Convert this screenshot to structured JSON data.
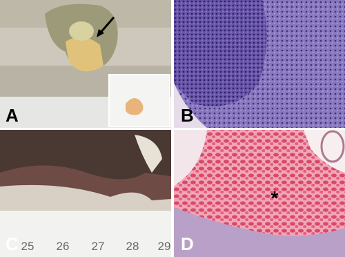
{
  "panels": [
    {
      "label": "A"
    },
    {
      "label": "B"
    },
    {
      "label": "C",
      "ruler": [
        "25",
        "26",
        "27",
        "28",
        "29"
      ]
    },
    {
      "label": "D",
      "annotation": "*"
    }
  ]
}
